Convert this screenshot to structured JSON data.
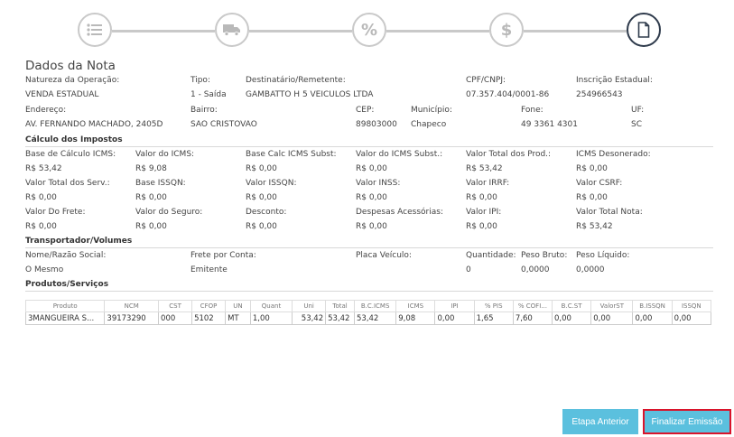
{
  "steps": [
    {
      "icon": "list-icon"
    },
    {
      "icon": "truck-icon"
    },
    {
      "icon": "percent-icon",
      "glyph": "%"
    },
    {
      "icon": "dollar-icon",
      "glyph": "$"
    },
    {
      "icon": "document-icon",
      "active": true
    }
  ],
  "title": "Dados da Nota",
  "operation": {
    "natureza_label": "Natureza da Operação:",
    "natureza_value": "VENDA ESTADUAL",
    "tipo_label": "Tipo:",
    "tipo_value": "1 - Saída",
    "dest_label": "Destinatário/Remetente:",
    "dest_value": "GAMBATTO H 5 VEICULOS LTDA",
    "cpf_label": "CPF/CNPJ:",
    "cpf_value": "07.357.404/0001-86",
    "ie_label": "Inscrição Estadual:",
    "ie_value": "254966543",
    "endereco_label": "Endereço:",
    "endereco_value": "AV. FERNANDO MACHADO, 2405D",
    "bairro_label": "Bairro:",
    "bairro_value": "SAO CRISTOVAO",
    "cep_label": "CEP:",
    "cep_value": "89803000",
    "municipio_label": "Município:",
    "municipio_value": "Chapeco",
    "fone_label": "Fone:",
    "fone_value": "49 3361 4301",
    "uf_label": "UF:",
    "uf_value": "SC"
  },
  "impostos": {
    "section": "Cálculo dos Impostos",
    "rows": [
      [
        {
          "label": "Base de Cálculo ICMS:",
          "value": "R$ 53,42"
        },
        {
          "label": "Valor do ICMS:",
          "value": "R$ 9,08"
        },
        {
          "label": "Base Calc ICMS Subst:",
          "value": "R$ 0,00"
        },
        {
          "label": "Valor do ICMS Subst.:",
          "value": "R$ 0,00"
        },
        {
          "label": "Valor Total dos Prod.:",
          "value": "R$ 53,42"
        },
        {
          "label": "ICMS Desonerado:",
          "value": "R$ 0,00"
        }
      ],
      [
        {
          "label": "Valor Total dos Serv.:",
          "value": "R$ 0,00"
        },
        {
          "label": "Base ISSQN:",
          "value": "R$ 0,00"
        },
        {
          "label": "Valor ISSQN:",
          "value": "R$ 0,00"
        },
        {
          "label": "Valor INSS:",
          "value": "R$ 0,00"
        },
        {
          "label": "Valor IRRF:",
          "value": "R$ 0,00"
        },
        {
          "label": "Valor CSRF:",
          "value": "R$ 0,00"
        }
      ],
      [
        {
          "label": "Valor Do Frete:",
          "value": "R$ 0,00"
        },
        {
          "label": "Valor do Seguro:",
          "value": "R$ 0,00"
        },
        {
          "label": "Desconto:",
          "value": "R$ 0,00"
        },
        {
          "label": "Despesas Acessórias:",
          "value": "R$ 0,00"
        },
        {
          "label": "Valor IPI:",
          "value": "R$ 0,00"
        },
        {
          "label": "Valor Total Nota:",
          "value": "R$ 53,42"
        }
      ]
    ]
  },
  "transportador": {
    "section": "Transportador/Volumes",
    "nome_label": "Nome/Razão Social:",
    "nome_value": "O Mesmo",
    "frete_label": "Frete por Conta:",
    "frete_value": "Emitente",
    "placa_label": "Placa Veículo:",
    "placa_value": "",
    "quantidade_label": "Quantidade:",
    "quantidade_value": "0",
    "bruto_label": "Peso Bruto:",
    "bruto_value": "0,0000",
    "liquido_label": "Peso Líquido:",
    "liquido_value": "0,0000"
  },
  "produtos": {
    "section": "Produtos/Serviços",
    "headers": [
      "Produto",
      "NCM",
      "CST",
      "CFOP",
      "UN",
      "Quant",
      "Uni",
      "Total",
      "B.C.ICMS",
      "ICMS",
      "IPI",
      "% PIS",
      "% COFI...",
      "B.C.ST",
      "ValorST",
      "B.ISSQN",
      "ISSQN"
    ],
    "rows": [
      [
        "3MANGUEIRA S...",
        "39173290",
        "000",
        "5102",
        "MT",
        "1,00",
        "53,42",
        "53,42",
        "53,42",
        "9,08",
        "0,00",
        "1,65",
        "7,60",
        "0,00",
        "0,00",
        "0,00",
        "0,00"
      ]
    ]
  },
  "buttons": {
    "prev": "Etapa Anterior",
    "finish": "Finalizar Emissão"
  },
  "colors": {
    "button_bg": "#5bc0de",
    "highlight_border": "#d9142b",
    "active_step": "#2f3b4c",
    "inactive_step": "#c9c9c9"
  }
}
